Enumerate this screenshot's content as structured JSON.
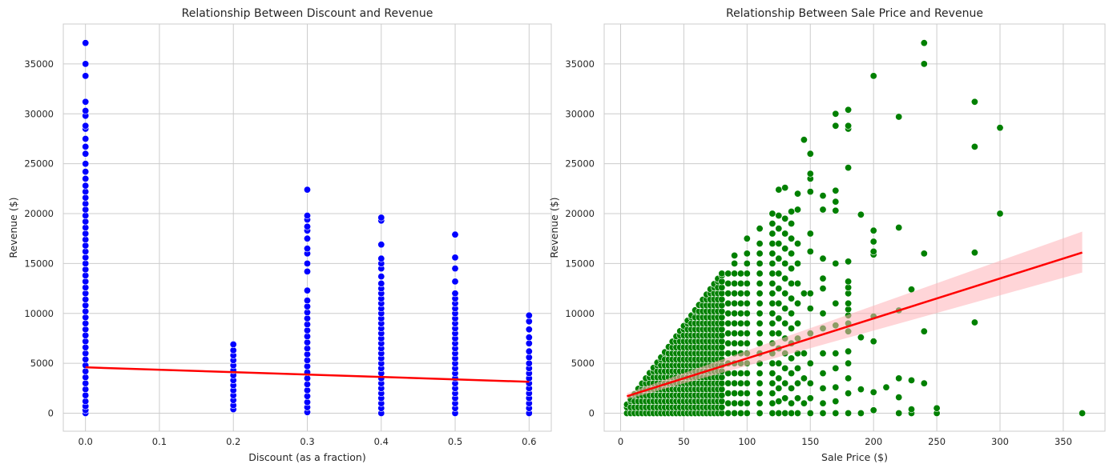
{
  "chart_data": [
    {
      "type": "scatter",
      "title": "Relationship Between Discount and Revenue",
      "xlabel": "Discount (as a fraction)",
      "ylabel": "Revenue ($)",
      "xlim": [
        -0.03,
        0.63
      ],
      "ylim": [
        -1800,
        39000
      ],
      "xticks": [
        0.0,
        0.1,
        0.2,
        0.3,
        0.4,
        0.5,
        0.6
      ],
      "xtick_labels": [
        "0.0",
        "0.1",
        "0.2",
        "0.3",
        "0.4",
        "0.5",
        "0.6"
      ],
      "yticks": [
        0,
        5000,
        10000,
        15000,
        20000,
        25000,
        30000,
        35000
      ],
      "ytick_labels": [
        "0",
        "5000",
        "10000",
        "15000",
        "20000",
        "25000",
        "30000",
        "35000"
      ],
      "grid": true,
      "point_color": "#0000ff",
      "regression": {
        "color": "#ff0000",
        "x": [
          0.0,
          0.6
        ],
        "y": [
          4600,
          3150
        ]
      },
      "columns": [
        {
          "x": 0.0,
          "y": [
            0,
            300,
            700,
            1200,
            1800,
            2400,
            3000,
            3600,
            4200,
            4800,
            5400,
            6000,
            6600,
            7200,
            7800,
            8400,
            9000,
            9600,
            10200,
            10800,
            11400,
            12000,
            12600,
            13200,
            13800,
            14400,
            15000,
            15600,
            16200,
            16800,
            17400,
            18000,
            18600,
            19200,
            19800,
            20400,
            21000,
            21600,
            22200,
            22800,
            23500,
            24200,
            25000,
            26000,
            26700,
            27500,
            28500,
            28800,
            29800,
            30300,
            31200,
            33800,
            35000,
            37100
          ]
        },
        {
          "x": 0.2,
          "y": [
            400,
            800,
            1300,
            1800,
            2300,
            2800,
            3300,
            3800,
            4300,
            4800,
            5300,
            5800,
            6300,
            6900
          ]
        },
        {
          "x": 0.3,
          "y": [
            100,
            600,
            1100,
            1700,
            2300,
            2900,
            3500,
            4100,
            4700,
            5300,
            5900,
            6500,
            7100,
            7700,
            8300,
            8900,
            9500,
            10100,
            10700,
            11300,
            12300,
            14200,
            15000,
            16000,
            16500,
            17500,
            18300,
            18700,
            19400,
            19800,
            22400
          ]
        },
        {
          "x": 0.4,
          "y": [
            0,
            500,
            1000,
            1500,
            2000,
            2500,
            3000,
            3500,
            4000,
            4500,
            5000,
            5500,
            6000,
            6500,
            7000,
            7500,
            8000,
            8500,
            9000,
            9500,
            10000,
            10500,
            11000,
            11500,
            12000,
            12500,
            13000,
            13700,
            14500,
            15000,
            15500,
            16900,
            19300,
            19600
          ]
        },
        {
          "x": 0.5,
          "y": [
            0,
            500,
            1000,
            1500,
            2000,
            2500,
            3000,
            3500,
            4000,
            4500,
            5000,
            5500,
            6000,
            6500,
            7000,
            7500,
            8000,
            8500,
            9000,
            9500,
            10000,
            10500,
            11000,
            11500,
            12000,
            13200,
            14500,
            15600,
            17900
          ]
        },
        {
          "x": 0.6,
          "y": [
            0,
            500,
            1000,
            1500,
            2000,
            2500,
            3000,
            3500,
            4000,
            4500,
            5000,
            5600,
            6200,
            7000,
            7600,
            8400,
            9200,
            9800
          ]
        }
      ]
    },
    {
      "type": "scatter",
      "title": "Relationship Between Sale Price and Revenue",
      "xlabel": "Sale Price ($)",
      "ylabel": "Revenue ($)",
      "xlim": [
        -13,
        383
      ],
      "ylim": [
        -1800,
        39000
      ],
      "xticks": [
        0,
        50,
        100,
        150,
        200,
        250,
        300,
        350
      ],
      "xtick_labels": [
        "0",
        "50",
        "100",
        "150",
        "200",
        "250",
        "300",
        "350"
      ],
      "yticks": [
        0,
        5000,
        10000,
        15000,
        20000,
        25000,
        30000,
        35000
      ],
      "ytick_labels": [
        "0",
        "5000",
        "10000",
        "15000",
        "20000",
        "25000",
        "30000",
        "35000"
      ],
      "grid": true,
      "point_color": "#008000",
      "regression": {
        "color": "#ff0000",
        "ci_color": "#ffb3b8",
        "x": [
          5,
          365
        ],
        "y": [
          1700,
          16100
        ],
        "ci_upper_end": 18200,
        "ci_lower_end": 14100,
        "ci_start_half": 300
      },
      "dense_region": {
        "x_max": 80,
        "slope": 175,
        "step_x": 3,
        "step_y": 600
      },
      "columns": [
        {
          "x": 85,
          "y": [
            0,
            1000,
            2000,
            3000,
            4000,
            5000,
            6000,
            7000,
            8000,
            9000,
            10000,
            11000,
            12000,
            13000,
            14000
          ]
        },
        {
          "x": 90,
          "y": [
            0,
            1000,
            2000,
            3000,
            4000,
            5000,
            6000,
            7000,
            8000,
            9000,
            10000,
            11000,
            12000,
            13000,
            14000,
            15000,
            15800
          ]
        },
        {
          "x": 95,
          "y": [
            0,
            1000,
            2000,
            3000,
            4000,
            5000,
            6000,
            7000,
            8000,
            9000,
            10000,
            11000,
            12000,
            13000,
            14000
          ]
        },
        {
          "x": 100,
          "y": [
            0,
            1000,
            2000,
            3000,
            4000,
            5000,
            6000,
            7000,
            8000,
            9000,
            10000,
            11000,
            12000,
            13000,
            14000,
            15000,
            16000,
            17500
          ]
        },
        {
          "x": 110,
          "y": [
            0,
            1000,
            2000,
            3000,
            4000,
            5000,
            6000,
            7000,
            8000,
            9000,
            10000,
            11000,
            12000,
            13000,
            14000,
            15000,
            16000,
            17000,
            18500
          ]
        },
        {
          "x": 120,
          "y": [
            0,
            1000,
            2000,
            3000,
            4000,
            5000,
            6000,
            7000,
            8000,
            9000,
            10000,
            11000,
            12000,
            13000,
            14000,
            15000,
            16000,
            17000,
            18000,
            19000,
            20000
          ]
        },
        {
          "x": 125,
          "y": [
            0,
            1200,
            2500,
            3500,
            5000,
            6500,
            8000,
            9500,
            11000,
            12500,
            14000,
            15500,
            17000,
            18500,
            19800,
            22400
          ]
        },
        {
          "x": 130,
          "y": [
            0,
            1500,
            3000,
            4500,
            6000,
            7500,
            9000,
            10500,
            12000,
            13500,
            15000,
            16500,
            18000,
            19500,
            22600
          ]
        },
        {
          "x": 135,
          "y": [
            0,
            1000,
            2500,
            4000,
            5500,
            7000,
            8500,
            10000,
            11500,
            13000,
            14500,
            16000,
            17500,
            19000,
            20200
          ]
        },
        {
          "x": 140,
          "y": [
            0,
            1500,
            3000,
            4500,
            6000,
            7500,
            9000,
            11000,
            13000,
            15000,
            17000,
            20400,
            22000
          ]
        },
        {
          "x": 145,
          "y": [
            1000,
            3500,
            6000,
            12000,
            27400
          ]
        },
        {
          "x": 150,
          "y": [
            0,
            1500,
            3000,
            5000,
            8000,
            10500,
            12000,
            16200,
            18000,
            22200,
            23500,
            24000,
            26000
          ]
        },
        {
          "x": 160,
          "y": [
            0,
            1000,
            2500,
            4000,
            6000,
            8500,
            10000,
            12500,
            13500,
            15500,
            20400,
            21800
          ]
        },
        {
          "x": 170,
          "y": [
            0,
            1200,
            2600,
            4500,
            6000,
            8800,
            11000,
            15000,
            20300,
            21200,
            22300,
            28800,
            30000
          ]
        },
        {
          "x": 180,
          "y": [
            0,
            2000,
            3500,
            5000,
            6200,
            8200,
            9000,
            9800,
            10400,
            11000,
            12000,
            12600,
            13200,
            15200,
            24600,
            28500,
            28800,
            30400
          ]
        },
        {
          "x": 190,
          "y": [
            0,
            2400,
            7600,
            19900
          ]
        },
        {
          "x": 200,
          "y": [
            300,
            2100,
            7200,
            9700,
            15900,
            16200,
            17200,
            18300,
            33800
          ]
        },
        {
          "x": 210,
          "y": [
            2600
          ]
        },
        {
          "x": 220,
          "y": [
            0,
            1600,
            3500,
            10300,
            18600,
            29700
          ]
        },
        {
          "x": 230,
          "y": [
            0,
            400,
            3300,
            12400
          ]
        },
        {
          "x": 240,
          "y": [
            3000,
            8200,
            16000,
            35000,
            37100
          ]
        },
        {
          "x": 250,
          "y": [
            0,
            500
          ]
        },
        {
          "x": 280,
          "y": [
            9100,
            16100,
            26700,
            31200
          ]
        },
        {
          "x": 300,
          "y": [
            20000,
            28600
          ]
        },
        {
          "x": 365,
          "y": [
            0
          ]
        }
      ]
    }
  ]
}
